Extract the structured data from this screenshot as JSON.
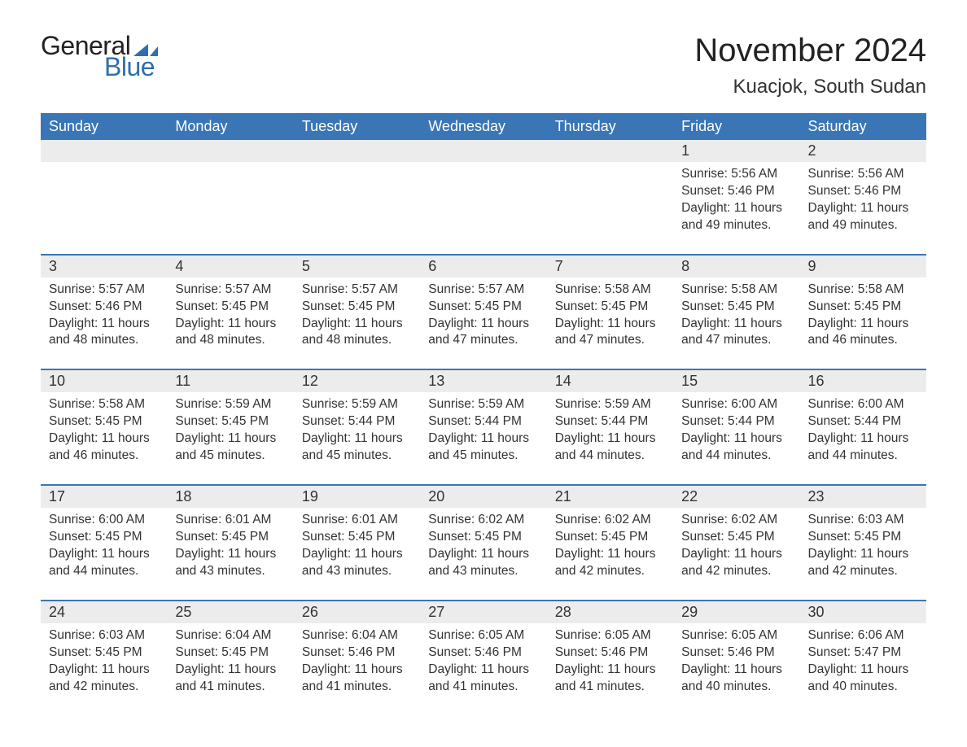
{
  "brand": {
    "general_text": "General",
    "blue_text": "Blue",
    "flag_color": "#2f6eb0"
  },
  "header": {
    "month_title": "November 2024",
    "location": "Kuacjok, South Sudan"
  },
  "colors": {
    "header_bg": "#3a76b6",
    "header_text": "#ffffff",
    "daynum_bg": "#ececec",
    "body_text": "#333333",
    "page_bg": "#ffffff",
    "week_border": "#3a76b6"
  },
  "typography": {
    "month_title_fontsize": 40,
    "location_fontsize": 24,
    "weekday_fontsize": 18,
    "daynum_fontsize": 18,
    "body_fontsize": 15.5
  },
  "weekdays": [
    "Sunday",
    "Monday",
    "Tuesday",
    "Wednesday",
    "Thursday",
    "Friday",
    "Saturday"
  ],
  "labels": {
    "sunrise_prefix": "Sunrise: ",
    "sunset_prefix": "Sunset: ",
    "daylight_prefix": "Daylight: "
  },
  "weeks": [
    [
      {
        "empty": true
      },
      {
        "empty": true
      },
      {
        "empty": true
      },
      {
        "empty": true
      },
      {
        "empty": true
      },
      {
        "day": "1",
        "sunrise": "5:56 AM",
        "sunset": "5:46 PM",
        "daylight": "11 hours and 49 minutes."
      },
      {
        "day": "2",
        "sunrise": "5:56 AM",
        "sunset": "5:46 PM",
        "daylight": "11 hours and 49 minutes."
      }
    ],
    [
      {
        "day": "3",
        "sunrise": "5:57 AM",
        "sunset": "5:46 PM",
        "daylight": "11 hours and 48 minutes."
      },
      {
        "day": "4",
        "sunrise": "5:57 AM",
        "sunset": "5:45 PM",
        "daylight": "11 hours and 48 minutes."
      },
      {
        "day": "5",
        "sunrise": "5:57 AM",
        "sunset": "5:45 PM",
        "daylight": "11 hours and 48 minutes."
      },
      {
        "day": "6",
        "sunrise": "5:57 AM",
        "sunset": "5:45 PM",
        "daylight": "11 hours and 47 minutes."
      },
      {
        "day": "7",
        "sunrise": "5:58 AM",
        "sunset": "5:45 PM",
        "daylight": "11 hours and 47 minutes."
      },
      {
        "day": "8",
        "sunrise": "5:58 AM",
        "sunset": "5:45 PM",
        "daylight": "11 hours and 47 minutes."
      },
      {
        "day": "9",
        "sunrise": "5:58 AM",
        "sunset": "5:45 PM",
        "daylight": "11 hours and 46 minutes."
      }
    ],
    [
      {
        "day": "10",
        "sunrise": "5:58 AM",
        "sunset": "5:45 PM",
        "daylight": "11 hours and 46 minutes."
      },
      {
        "day": "11",
        "sunrise": "5:59 AM",
        "sunset": "5:45 PM",
        "daylight": "11 hours and 45 minutes."
      },
      {
        "day": "12",
        "sunrise": "5:59 AM",
        "sunset": "5:44 PM",
        "daylight": "11 hours and 45 minutes."
      },
      {
        "day": "13",
        "sunrise": "5:59 AM",
        "sunset": "5:44 PM",
        "daylight": "11 hours and 45 minutes."
      },
      {
        "day": "14",
        "sunrise": "5:59 AM",
        "sunset": "5:44 PM",
        "daylight": "11 hours and 44 minutes."
      },
      {
        "day": "15",
        "sunrise": "6:00 AM",
        "sunset": "5:44 PM",
        "daylight": "11 hours and 44 minutes."
      },
      {
        "day": "16",
        "sunrise": "6:00 AM",
        "sunset": "5:44 PM",
        "daylight": "11 hours and 44 minutes."
      }
    ],
    [
      {
        "day": "17",
        "sunrise": "6:00 AM",
        "sunset": "5:45 PM",
        "daylight": "11 hours and 44 minutes."
      },
      {
        "day": "18",
        "sunrise": "6:01 AM",
        "sunset": "5:45 PM",
        "daylight": "11 hours and 43 minutes."
      },
      {
        "day": "19",
        "sunrise": "6:01 AM",
        "sunset": "5:45 PM",
        "daylight": "11 hours and 43 minutes."
      },
      {
        "day": "20",
        "sunrise": "6:02 AM",
        "sunset": "5:45 PM",
        "daylight": "11 hours and 43 minutes."
      },
      {
        "day": "21",
        "sunrise": "6:02 AM",
        "sunset": "5:45 PM",
        "daylight": "11 hours and 42 minutes."
      },
      {
        "day": "22",
        "sunrise": "6:02 AM",
        "sunset": "5:45 PM",
        "daylight": "11 hours and 42 minutes."
      },
      {
        "day": "23",
        "sunrise": "6:03 AM",
        "sunset": "5:45 PM",
        "daylight": "11 hours and 42 minutes."
      }
    ],
    [
      {
        "day": "24",
        "sunrise": "6:03 AM",
        "sunset": "5:45 PM",
        "daylight": "11 hours and 42 minutes."
      },
      {
        "day": "25",
        "sunrise": "6:04 AM",
        "sunset": "5:45 PM",
        "daylight": "11 hours and 41 minutes."
      },
      {
        "day": "26",
        "sunrise": "6:04 AM",
        "sunset": "5:46 PM",
        "daylight": "11 hours and 41 minutes."
      },
      {
        "day": "27",
        "sunrise": "6:05 AM",
        "sunset": "5:46 PM",
        "daylight": "11 hours and 41 minutes."
      },
      {
        "day": "28",
        "sunrise": "6:05 AM",
        "sunset": "5:46 PM",
        "daylight": "11 hours and 41 minutes."
      },
      {
        "day": "29",
        "sunrise": "6:05 AM",
        "sunset": "5:46 PM",
        "daylight": "11 hours and 40 minutes."
      },
      {
        "day": "30",
        "sunrise": "6:06 AM",
        "sunset": "5:47 PM",
        "daylight": "11 hours and 40 minutes."
      }
    ]
  ]
}
